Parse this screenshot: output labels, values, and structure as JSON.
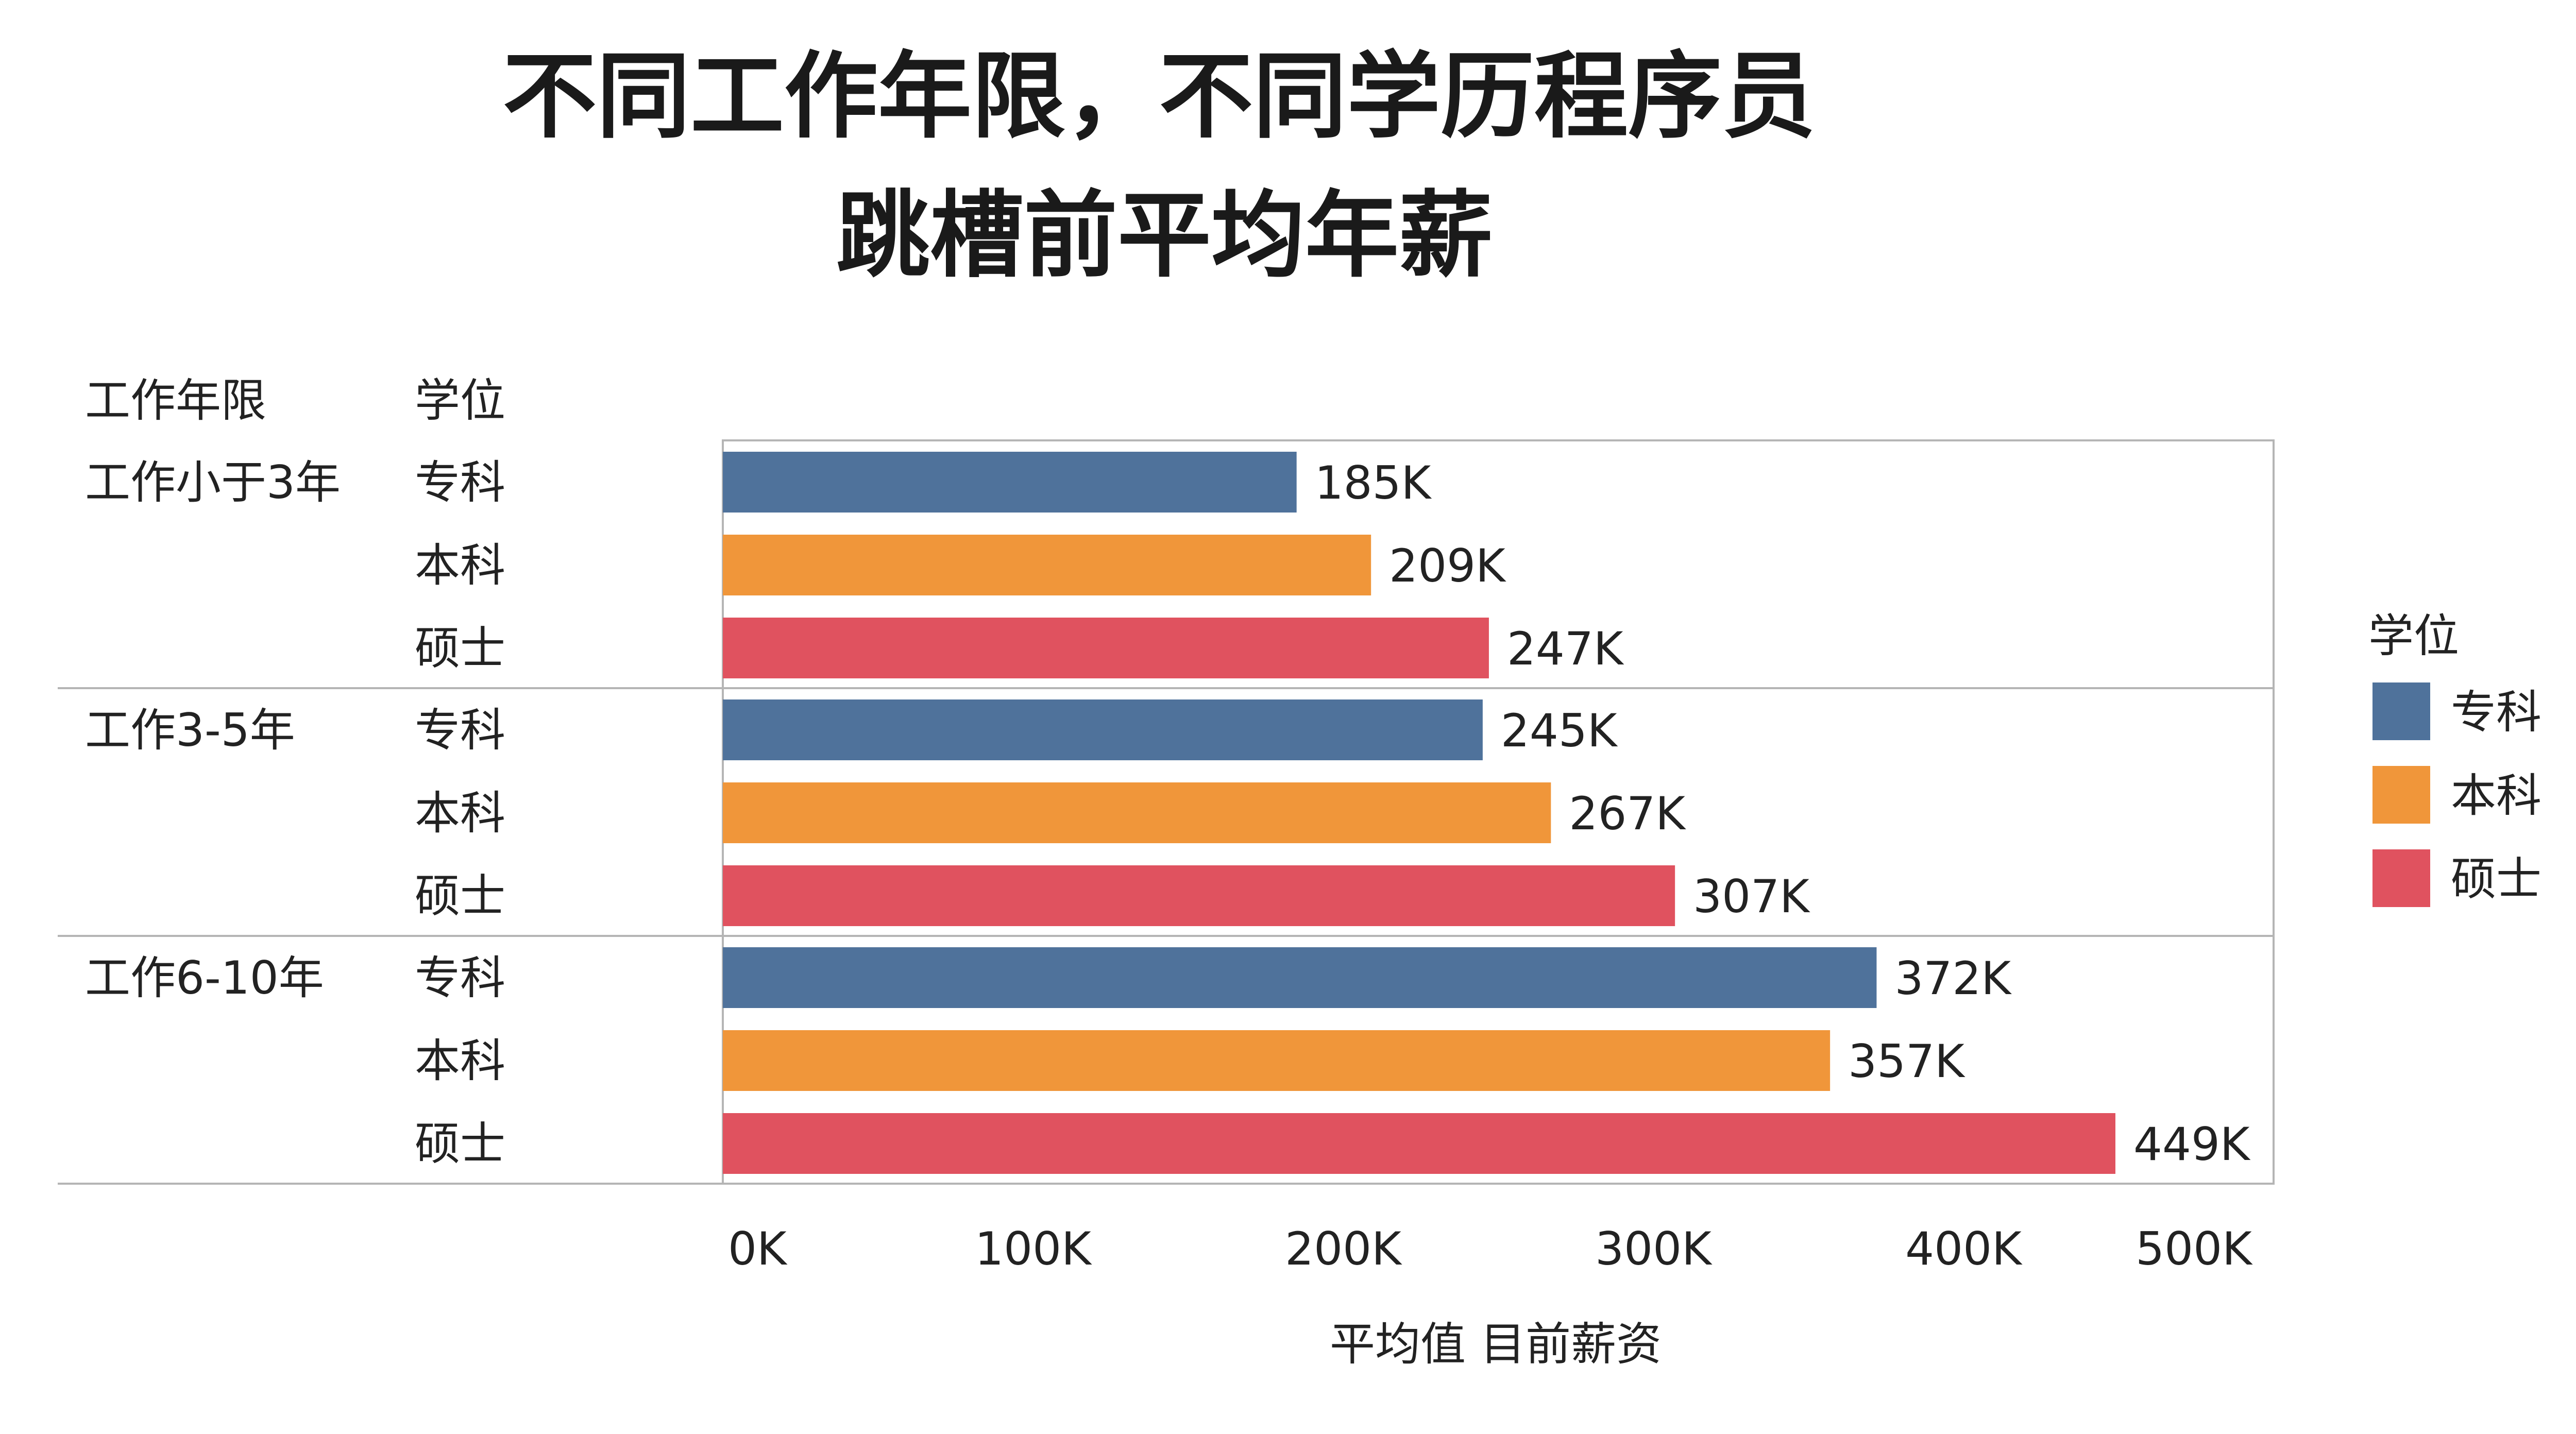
{
  "chart_data": {
    "type": "bar",
    "orientation": "horizontal",
    "title_lines": [
      "不同工作年限，不同学历程序员",
      "跳槽前平均年薪"
    ],
    "row_headers": [
      "工作年限",
      "学位"
    ],
    "groups": [
      {
        "label": "工作小于3年",
        "bars": [
          {
            "degree": "专科",
            "value": 185,
            "label": "185K"
          },
          {
            "degree": "本科",
            "value": 209,
            "label": "209K"
          },
          {
            "degree": "硕士",
            "value": 247,
            "label": "247K"
          }
        ]
      },
      {
        "label": "工作3-5年",
        "bars": [
          {
            "degree": "专科",
            "value": 245,
            "label": "245K"
          },
          {
            "degree": "本科",
            "value": 267,
            "label": "267K"
          },
          {
            "degree": "硕士",
            "value": 307,
            "label": "307K"
          }
        ]
      },
      {
        "label": "工作6-10年",
        "bars": [
          {
            "degree": "专科",
            "value": 372,
            "label": "372K"
          },
          {
            "degree": "本科",
            "value": 357,
            "label": "357K"
          },
          {
            "degree": "硕士",
            "value": 449,
            "label": "449K"
          }
        ]
      }
    ],
    "xlim": [
      0,
      500
    ],
    "xticks": [
      0,
      100,
      200,
      300,
      400,
      500
    ],
    "xtick_labels": [
      "0K",
      "100K",
      "200K",
      "300K",
      "400K",
      "500K"
    ],
    "xlabel": "平均值 目前薪资",
    "legend": {
      "title": "学位",
      "placement": "right",
      "items": [
        {
          "name": "专科",
          "color": "#4f729b"
        },
        {
          "name": "本科",
          "color": "#f0963a"
        },
        {
          "name": "硕士",
          "color": "#e0525f"
        }
      ]
    },
    "grid": false
  }
}
